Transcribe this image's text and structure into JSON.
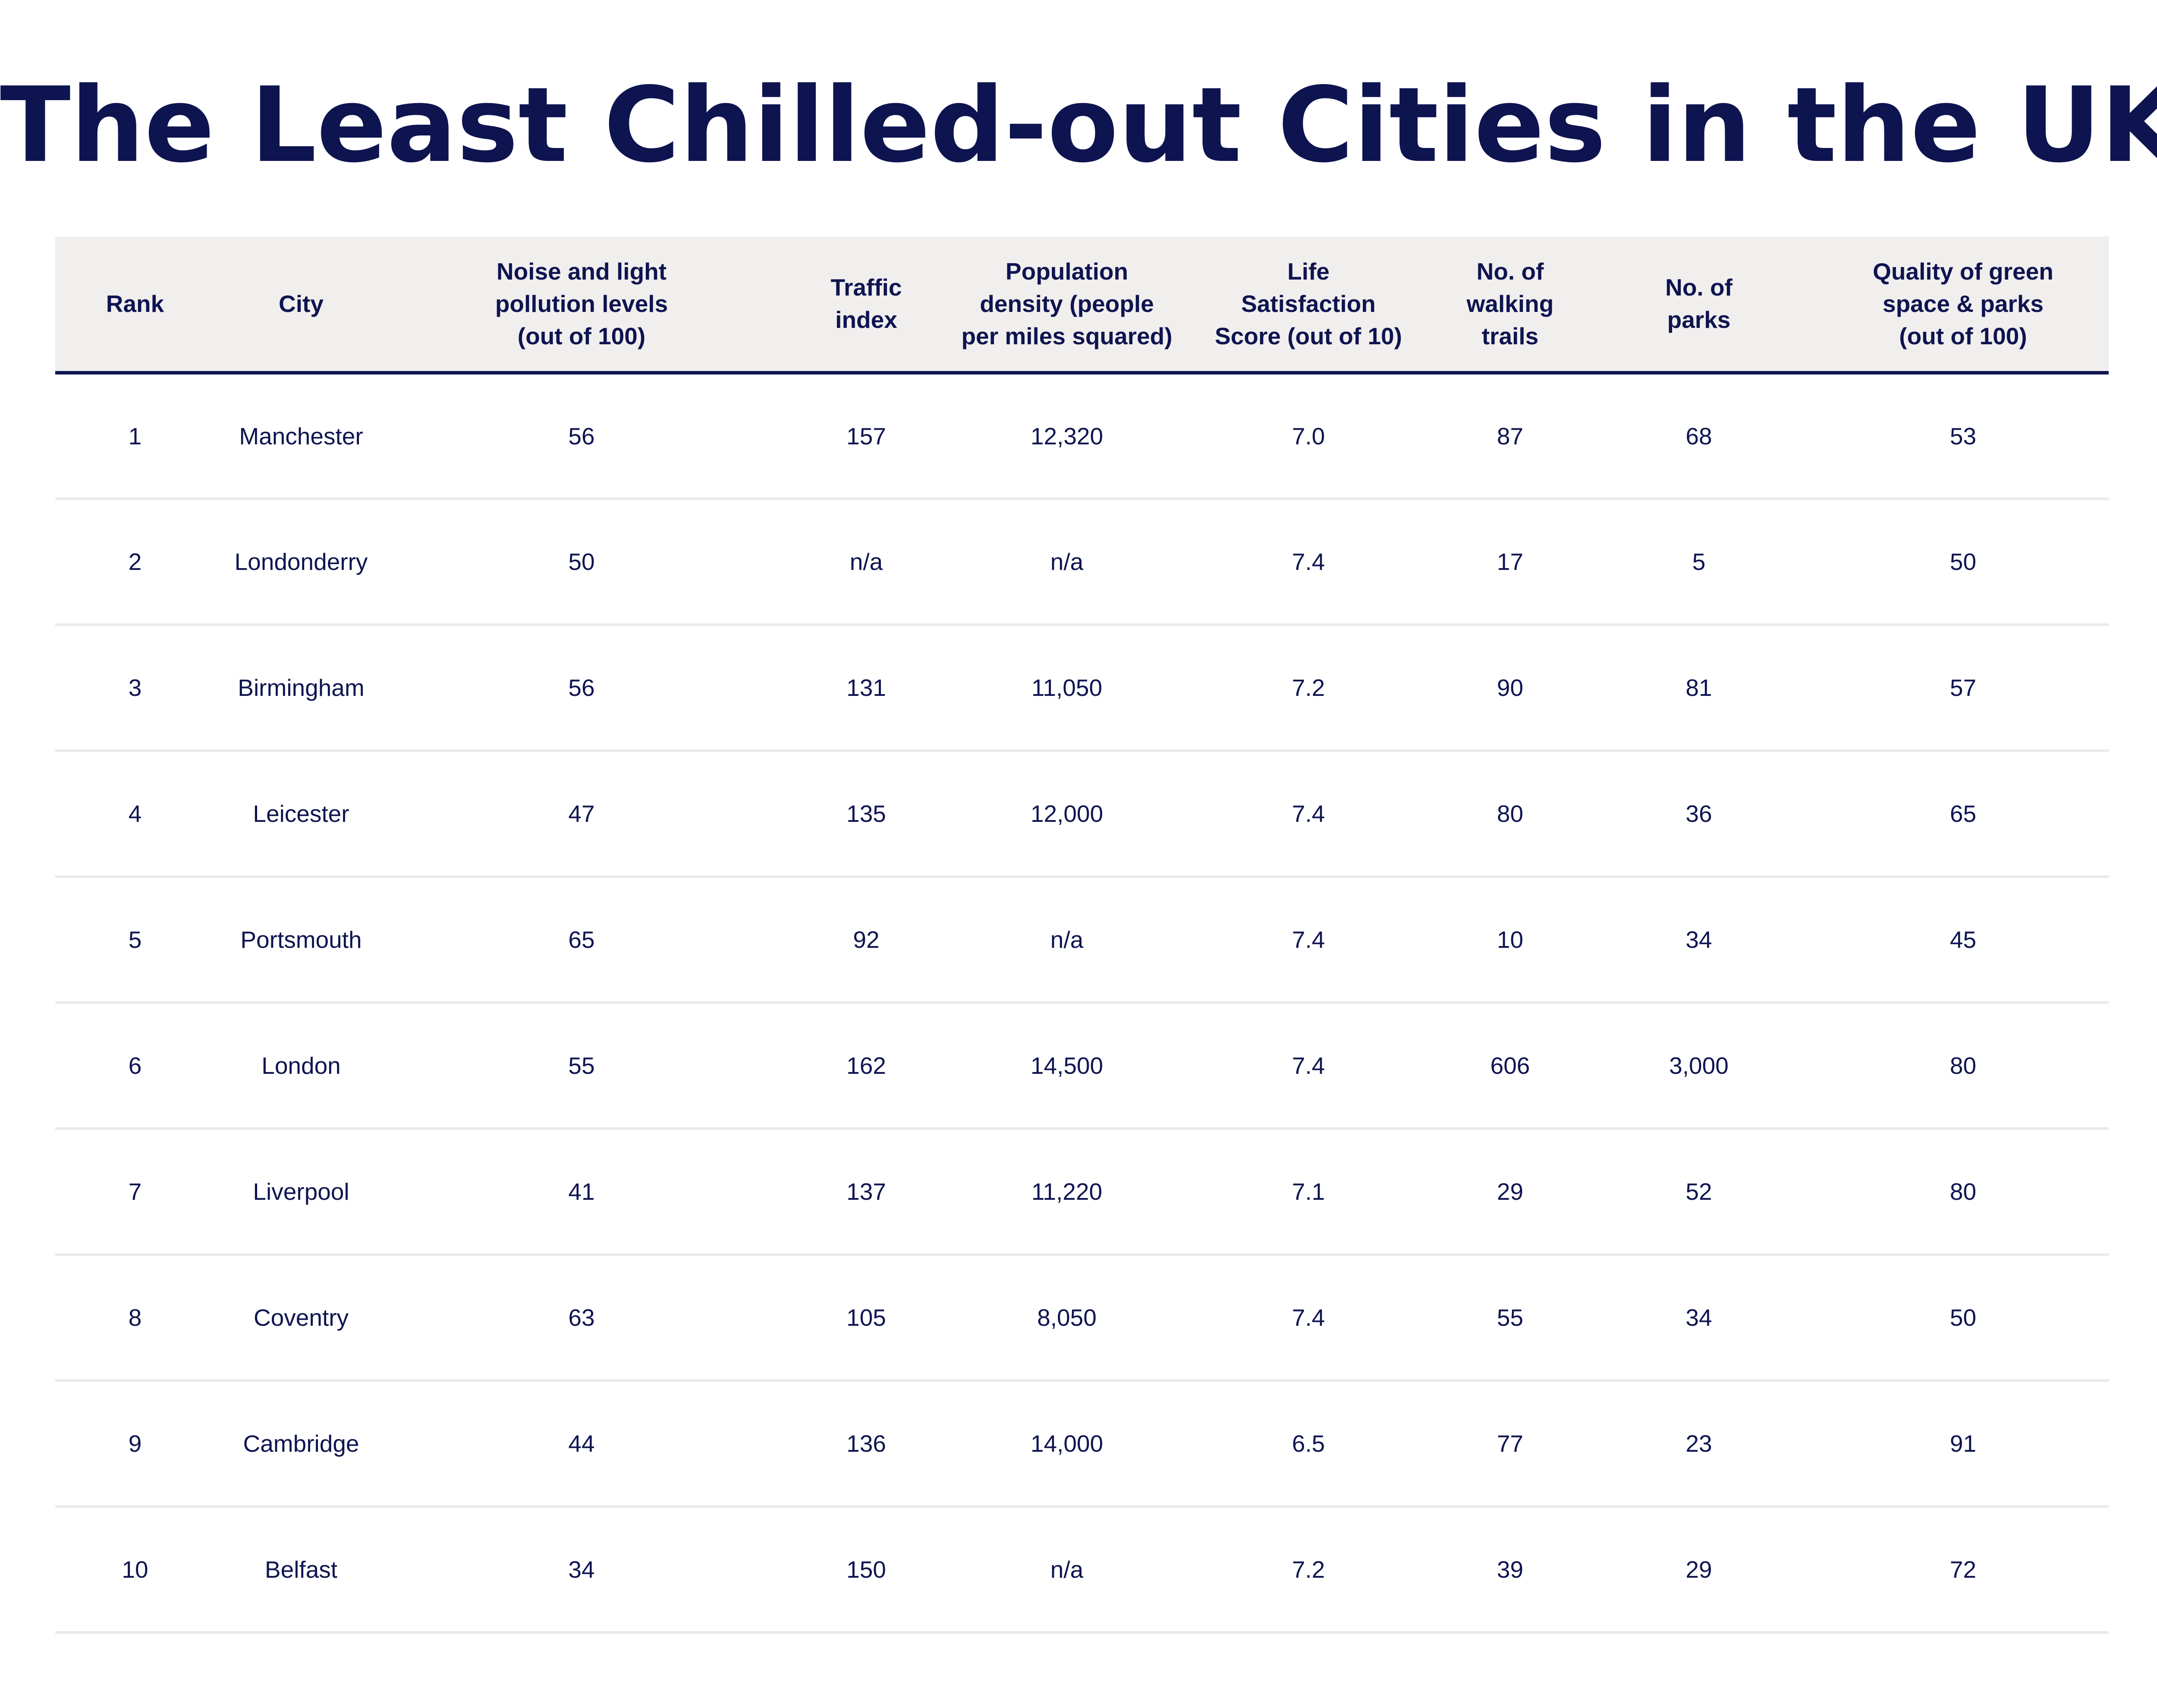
{
  "chart_data": {
    "type": "table",
    "title": "The Least Chilled-out Cities in the UK",
    "columns": [
      "Rank",
      "City",
      "Noise and light\npollution levels\n(out of 100)",
      "Traffic\nindex",
      "Population\ndensity  (people\nper miles squared)",
      "Life\nSatisfaction\nScore (out of 10)",
      "No. of\nwalking\ntrails",
      "No. of\nparks",
      "Quality of green\nspace & parks\n(out of 100)"
    ],
    "rows": [
      [
        "1",
        "Manchester",
        "56",
        "157",
        "12,320",
        "7.0",
        "87",
        "68",
        "53"
      ],
      [
        "2",
        "Londonderry",
        "50",
        "n/a",
        "n/a",
        "7.4",
        "17",
        "5",
        "50"
      ],
      [
        "3",
        "Birmingham",
        "56",
        "131",
        "11,050",
        "7.2",
        "90",
        "81",
        "57"
      ],
      [
        "4",
        "Leicester",
        "47",
        "135",
        "12,000",
        "7.4",
        "80",
        "36",
        "65"
      ],
      [
        "5",
        "Portsmouth",
        "65",
        "92",
        "n/a",
        "7.4",
        "10",
        "34",
        "45"
      ],
      [
        "6",
        "London",
        "55",
        "162",
        "14,500",
        "7.4",
        "606",
        "3,000",
        "80"
      ],
      [
        "7",
        "Liverpool",
        "41",
        "137",
        "11,220",
        "7.1",
        "29",
        "52",
        "80"
      ],
      [
        "8",
        "Coventry",
        "63",
        "105",
        "8,050",
        "7.4",
        "55",
        "34",
        "50"
      ],
      [
        "9",
        "Cambridge",
        "44",
        "136",
        "14,000",
        "6.5",
        "77",
        "23",
        "91"
      ],
      [
        "10",
        "Belfast",
        "34",
        "150",
        "n/a",
        "7.2",
        "39",
        "29",
        "72"
      ]
    ]
  },
  "colors": {
    "text": "#0e1450",
    "header_background": "#f1eeee",
    "header_rule": "#0e1450",
    "row_rule": "#ebe9e9"
  }
}
